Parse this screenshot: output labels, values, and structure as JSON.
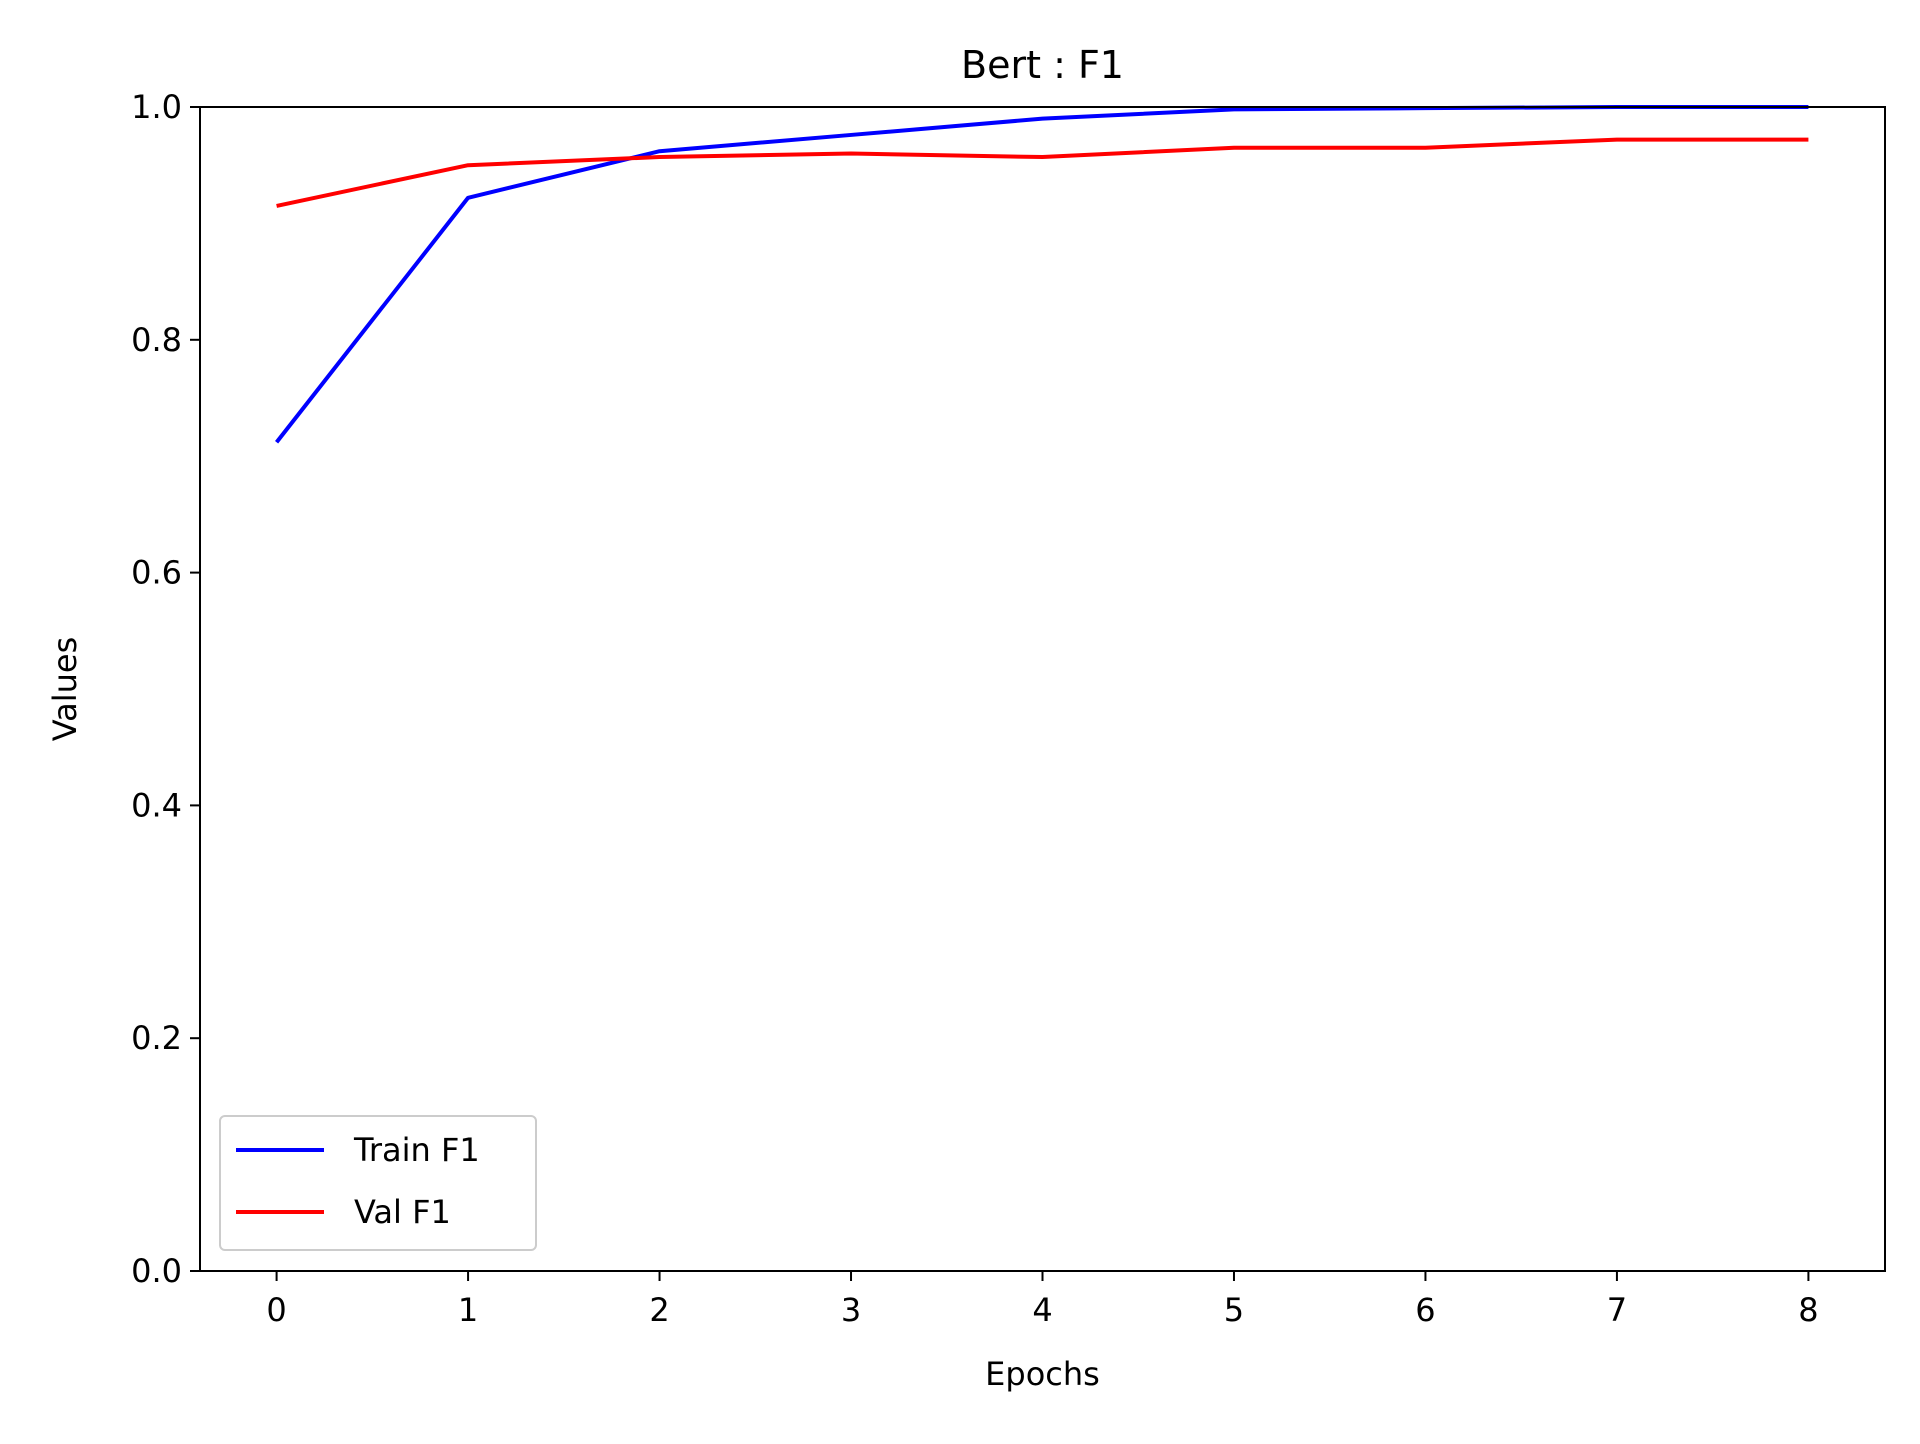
{
  "chart_data": {
    "type": "line",
    "title": "Bert : F1",
    "xlabel": "Epochs",
    "ylabel": "Values",
    "x": [
      0,
      1,
      2,
      3,
      4,
      5,
      6,
      7,
      8
    ],
    "xlim": [
      -0.4,
      8.4
    ],
    "ylim": [
      0.0,
      1.0
    ],
    "xticks": [
      "0",
      "1",
      "2",
      "3",
      "4",
      "5",
      "6",
      "7",
      "8"
    ],
    "yticks": [
      "0.0",
      "0.2",
      "0.4",
      "0.6",
      "0.8",
      "1.0"
    ],
    "grid": false,
    "legend_position": "lower-left",
    "series": [
      {
        "name": "Train F1",
        "color": "#0000ff",
        "values": [
          0.712,
          0.922,
          0.962,
          0.976,
          0.99,
          0.998,
          0.999,
          1.0,
          1.0
        ]
      },
      {
        "name": "Val F1",
        "color": "#ff0000",
        "values": [
          0.915,
          0.95,
          0.957,
          0.96,
          0.957,
          0.965,
          0.965,
          0.972,
          0.972
        ]
      }
    ]
  }
}
